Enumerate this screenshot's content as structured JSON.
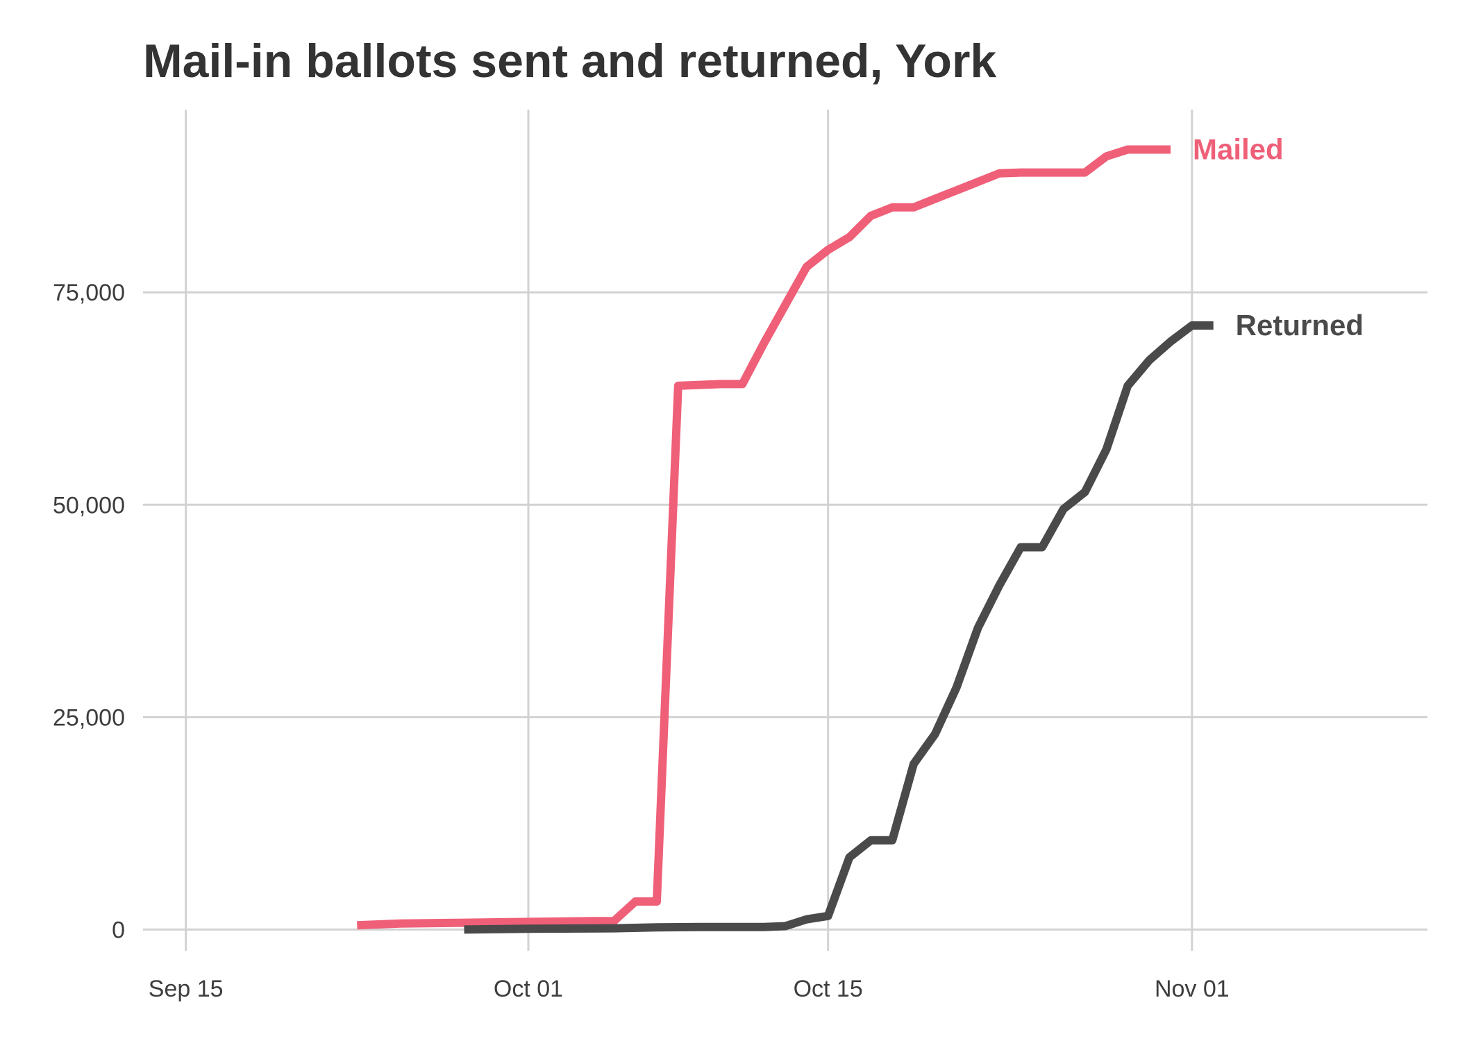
{
  "chart_data": {
    "type": "line",
    "title": "Mail-in ballots sent and returned, York",
    "xlabel": "",
    "ylabel": "",
    "x_ticks": [
      "Sep 15",
      "Oct 01",
      "Oct 15",
      "Nov 01"
    ],
    "y_ticks": [
      "0",
      "25,000",
      "50,000",
      "75,000"
    ],
    "y_tick_values": [
      0,
      25000,
      50000,
      75000
    ],
    "x_range": [
      "2020-09-13",
      "2020-11-12"
    ],
    "ylim": [
      -2500,
      96500
    ],
    "grid": true,
    "legend": "direct labels at line ends",
    "series": [
      {
        "name": "Mailed",
        "color": "#ef5f78",
        "points": [
          [
            "2020-09-23",
            500
          ],
          [
            "2020-09-25",
            700
          ],
          [
            "2020-09-28",
            800
          ],
          [
            "2020-10-01",
            900
          ],
          [
            "2020-10-04",
            1000
          ],
          [
            "2020-10-05",
            1000
          ],
          [
            "2020-10-06",
            3300
          ],
          [
            "2020-10-07",
            3300
          ],
          [
            "2020-10-08",
            64000
          ],
          [
            "2020-10-10",
            64200
          ],
          [
            "2020-10-11",
            64200
          ],
          [
            "2020-10-12",
            69000
          ],
          [
            "2020-10-13",
            73500
          ],
          [
            "2020-10-14",
            78000
          ],
          [
            "2020-10-15",
            80000
          ],
          [
            "2020-10-16",
            81500
          ],
          [
            "2020-10-17",
            84000
          ],
          [
            "2020-10-18",
            85000
          ],
          [
            "2020-10-19",
            85000
          ],
          [
            "2020-10-20",
            86000
          ],
          [
            "2020-10-21",
            87000
          ],
          [
            "2020-10-22",
            88000
          ],
          [
            "2020-10-23",
            89000
          ],
          [
            "2020-10-24",
            89100
          ],
          [
            "2020-10-25",
            89100
          ],
          [
            "2020-10-26",
            89100
          ],
          [
            "2020-10-27",
            89100
          ],
          [
            "2020-10-28",
            91000
          ],
          [
            "2020-10-29",
            91800
          ],
          [
            "2020-10-30",
            91800
          ],
          [
            "2020-10-31",
            91800
          ]
        ]
      },
      {
        "name": "Returned",
        "color": "#4a4a4a",
        "points": [
          [
            "2020-09-28",
            0
          ],
          [
            "2020-10-01",
            100
          ],
          [
            "2020-10-05",
            150
          ],
          [
            "2020-10-07",
            250
          ],
          [
            "2020-10-09",
            300
          ],
          [
            "2020-10-12",
            300
          ],
          [
            "2020-10-13",
            400
          ],
          [
            "2020-10-14",
            1200
          ],
          [
            "2020-10-15",
            1600
          ],
          [
            "2020-10-16",
            8500
          ],
          [
            "2020-10-17",
            10500
          ],
          [
            "2020-10-18",
            10500
          ],
          [
            "2020-10-19",
            19500
          ],
          [
            "2020-10-20",
            23000
          ],
          [
            "2020-10-21",
            28500
          ],
          [
            "2020-10-22",
            35500
          ],
          [
            "2020-10-23",
            40500
          ],
          [
            "2020-10-24",
            45000
          ],
          [
            "2020-10-25",
            45000
          ],
          [
            "2020-10-26",
            49500
          ],
          [
            "2020-10-27",
            51500
          ],
          [
            "2020-10-28",
            56500
          ],
          [
            "2020-10-29",
            64000
          ],
          [
            "2020-10-30",
            67000
          ],
          [
            "2020-10-31",
            69200
          ],
          [
            "2020-11-01",
            71100
          ],
          [
            "2020-11-02",
            71100
          ]
        ]
      }
    ]
  }
}
